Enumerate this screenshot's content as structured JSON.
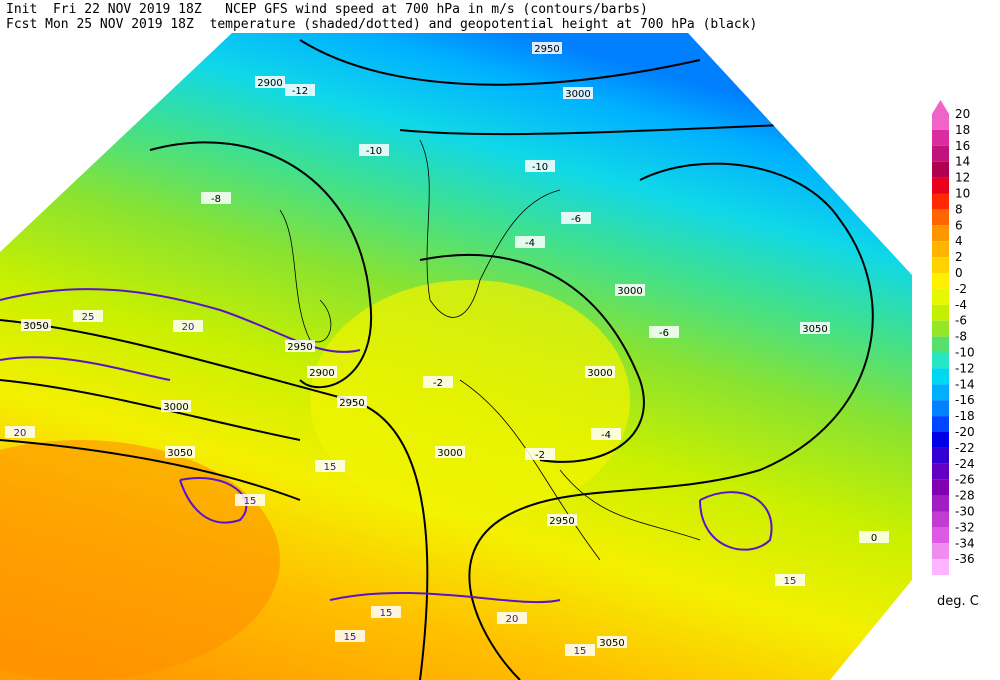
{
  "header": {
    "line1": "Init  Fri 22 NOV 2019 18Z   NCEP GFS wind speed at 700 hPa in m/s (contours/barbs)",
    "line2": "Fcst Mon 25 NOV 2019 18Z  temperature (shaded/dotted) and geopotential height at 700 hPa (black)"
  },
  "colorbar": {
    "ticks": [
      20,
      18,
      16,
      14,
      12,
      10,
      8,
      6,
      4,
      2,
      0,
      -2,
      -4,
      -6,
      -8,
      -10,
      -12,
      -14,
      -16,
      -18,
      -20,
      -22,
      -24,
      -26,
      -28,
      -30,
      -32,
      -34,
      -36
    ],
    "colors": [
      "#f064c8",
      "#dc2aa0",
      "#c0147c",
      "#b00050",
      "#e8001e",
      "#ff2800",
      "#ff6400",
      "#ff9600",
      "#ffb400",
      "#ffd200",
      "#fff000",
      "#e6f800",
      "#c3f000",
      "#96e628",
      "#55e070",
      "#28e6c3",
      "#00d7f0",
      "#00b0ff",
      "#0082ff",
      "#0046ff",
      "#0000e6",
      "#3200d2",
      "#6400c3",
      "#8200b4",
      "#a01ec3",
      "#c33cd2",
      "#dc5ae6",
      "#f08cf0",
      "#ffb4ff"
    ],
    "unit": "deg. C"
  },
  "map_labels": [
    2950,
    2900,
    3000,
    3000,
    3050,
    3000,
    3000,
    2950,
    2900,
    2950,
    3050,
    2950,
    3000,
    3050,
    3050,
    -12,
    -10,
    -10,
    -8,
    -6,
    -4,
    -2,
    -2,
    -4,
    -6,
    0,
    15,
    15,
    20,
    20,
    25,
    15,
    15,
    15,
    20,
    15
  ]
}
